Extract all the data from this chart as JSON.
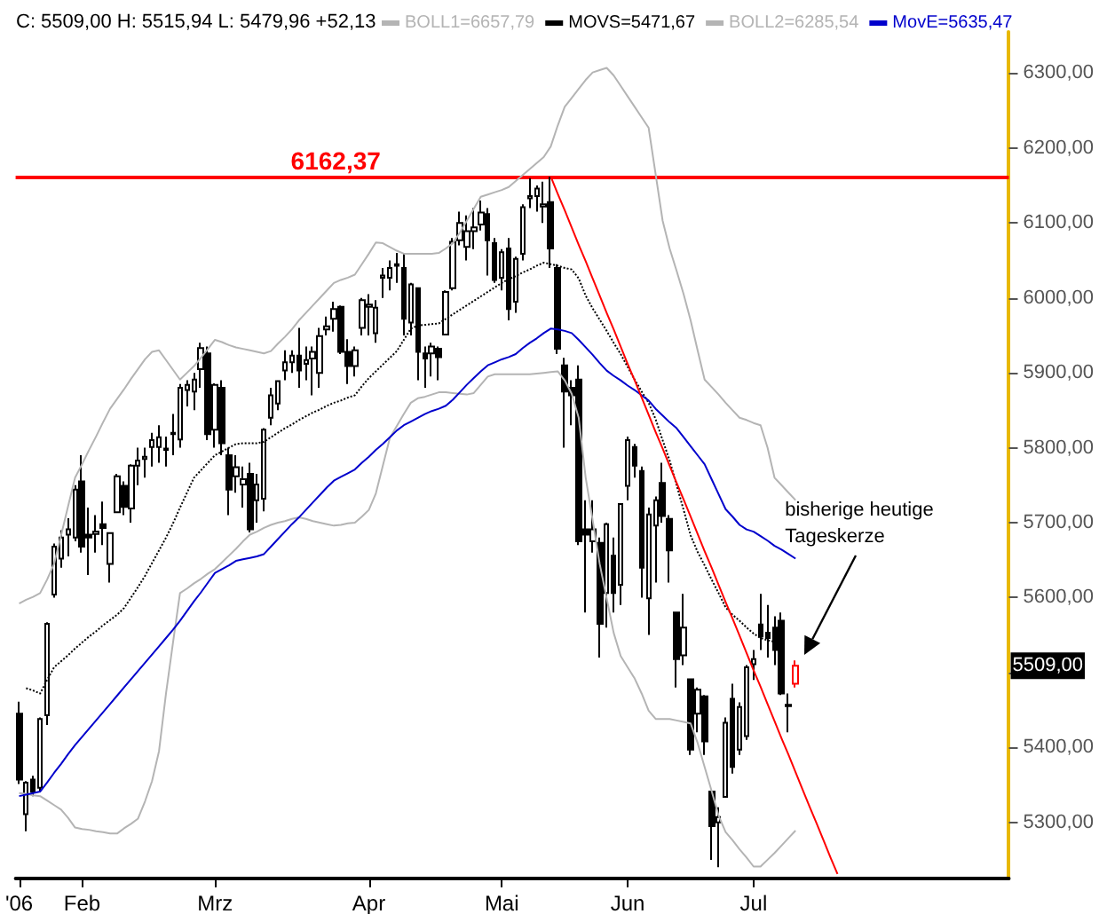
{
  "chart_data": {
    "type": "candlestick",
    "title": "C: 5509,00 H: 5515,94 L: 5479,96 +52,13",
    "legend": "top",
    "marker": "none",
    "categories": [
      "'06",
      null,
      null,
      null,
      null,
      null,
      null,
      null,
      null,
      "Feb",
      null,
      null,
      null,
      null,
      null,
      null,
      null,
      null,
      null,
      null,
      null,
      null,
      null,
      null,
      null,
      null,
      null,
      null,
      "Mrz",
      null,
      null,
      null,
      null,
      null,
      null,
      null,
      null,
      null,
      null,
      null,
      null,
      null,
      null,
      null,
      null,
      null,
      null,
      null,
      null,
      null,
      "Apr",
      null,
      null,
      null,
      null,
      null,
      null,
      null,
      null,
      null,
      null,
      null,
      null,
      null,
      null,
      null,
      null,
      null,
      null,
      "Mai",
      null,
      null,
      null,
      null,
      null,
      null,
      null,
      null,
      null,
      null,
      null,
      null,
      null,
      null,
      null,
      null,
      null,
      "Jun",
      null,
      null,
      null,
      null,
      null,
      null,
      null,
      null,
      null,
      null,
      null,
      null,
      null,
      null,
      null,
      null,
      null,
      "Jul",
      null,
      null,
      null,
      null,
      null,
      null,
      null,
      null,
      null,
      null,
      null,
      null,
      null,
      null,
      null,
      null,
      null,
      null,
      null,
      null,
      null,
      null,
      null,
      null,
      null,
      null,
      null,
      null,
      null,
      null,
      null,
      null,
      null,
      null,
      null,
      null
    ],
    "ylim": [
      5225,
      6355
    ],
    "yticks": [
      {
        "value": 5300,
        "label": "5300,00"
      },
      {
        "value": 5400,
        "label": "5400,00"
      },
      {
        "value": 5500,
        "label": null
      },
      {
        "value": 5600,
        "label": "5600,00"
      },
      {
        "value": 5700,
        "label": "5700,00"
      },
      {
        "value": 5800,
        "label": "5800,00"
      },
      {
        "value": 5900,
        "label": "5900,00"
      },
      {
        "value": 6000,
        "label": "6000,00"
      },
      {
        "value": 6100,
        "label": "6100,00"
      },
      {
        "value": 6200,
        "label": "6200,00"
      },
      {
        "value": 6300,
        "label": "6300,00"
      }
    ],
    "ohlc": [
      [
        5445,
        5461,
        5351,
        5357
      ],
      [
        5311,
        5355,
        5288,
        5353
      ],
      [
        5357,
        5362,
        5335,
        5341
      ],
      [
        5346,
        5440,
        5340,
        5438
      ],
      [
        5443,
        5567,
        5430,
        5565
      ],
      [
        5604,
        5672,
        5600,
        5668
      ],
      [
        5652,
        5690,
        5640,
        5680
      ],
      [
        5684,
        5706,
        5655,
        5691
      ],
      [
        5680,
        5750,
        5675,
        5744
      ],
      [
        5755,
        5790,
        5660,
        5668
      ],
      [
        5684,
        5720,
        5630,
        5680
      ],
      [
        5685,
        5710,
        5660,
        5688
      ],
      [
        5698,
        5728,
        5670,
        5693
      ],
      [
        5645,
        5686,
        5620,
        5686
      ],
      [
        5714,
        5765,
        5714,
        5762
      ],
      [
        5749,
        5755,
        5710,
        5721
      ],
      [
        5719,
        5778,
        5700,
        5776
      ],
      [
        5776,
        5800,
        5750,
        5783
      ],
      [
        5785,
        5800,
        5760,
        5788
      ],
      [
        5801,
        5820,
        5775,
        5810
      ],
      [
        5801,
        5830,
        5780,
        5814
      ],
      [
        5797,
        5815,
        5775,
        5799
      ],
      [
        5818,
        5845,
        5790,
        5820
      ],
      [
        5811,
        5885,
        5800,
        5880
      ],
      [
        5877,
        5890,
        5855,
        5884
      ],
      [
        5875,
        5900,
        5850,
        5891
      ],
      [
        5905,
        5940,
        5880,
        5933
      ],
      [
        5926,
        5935,
        5810,
        5818
      ],
      [
        5824,
        5886,
        5800,
        5884
      ],
      [
        5880,
        5890,
        5790,
        5806
      ],
      [
        5790,
        5800,
        5710,
        5744
      ],
      [
        5762,
        5790,
        5740,
        5774
      ],
      [
        5751,
        5775,
        5720,
        5758
      ],
      [
        5765,
        5780,
        5687,
        5691
      ],
      [
        5730,
        5765,
        5700,
        5751
      ],
      [
        5732,
        5826,
        5715,
        5824
      ],
      [
        5840,
        5880,
        5830,
        5870
      ],
      [
        5859,
        5890,
        5850,
        5889
      ],
      [
        5903,
        5930,
        5890,
        5914
      ],
      [
        5914,
        5930,
        5900,
        5923
      ],
      [
        5923,
        5960,
        5880,
        5903
      ],
      [
        5912,
        5935,
        5890,
        5917
      ],
      [
        5919,
        5935,
        5870,
        5928
      ],
      [
        5900,
        5960,
        5880,
        5949
      ],
      [
        5958,
        5975,
        5950,
        5962
      ],
      [
        5972,
        5995,
        5955,
        5985
      ],
      [
        5988,
        5990,
        5925,
        5928
      ],
      [
        5928,
        5945,
        5885,
        5909
      ],
      [
        5909,
        5935,
        5895,
        5930
      ],
      [
        5960,
        6000,
        5950,
        5997
      ],
      [
        5988,
        6005,
        5950,
        5991
      ],
      [
        5953,
        5997,
        5940,
        5987
      ],
      [
        6027,
        6040,
        6000,
        6030
      ],
      [
        6027,
        6050,
        6010,
        6040
      ],
      [
        6043,
        6060,
        6020,
        6045
      ],
      [
        6040,
        6060,
        5950,
        5972
      ],
      [
        5967,
        6020,
        5950,
        6018
      ],
      [
        6013,
        6013,
        5890,
        5928
      ],
      [
        5926,
        5935,
        5880,
        5919
      ],
      [
        5926,
        5940,
        5895,
        5935
      ],
      [
        5932,
        5935,
        5890,
        5921
      ],
      [
        5951,
        6010,
        5950,
        6008
      ],
      [
        6013,
        6080,
        6010,
        6075
      ],
      [
        6077,
        6115,
        6070,
        6100
      ],
      [
        6068,
        6110,
        6050,
        6089
      ],
      [
        6089,
        6120,
        6065,
        6094
      ],
      [
        6098,
        6130,
        6090,
        6114
      ],
      [
        6112,
        6120,
        6030,
        6077
      ],
      [
        6073,
        6080,
        6020,
        6024
      ],
      [
        6027,
        6065,
        6010,
        6061
      ],
      [
        6066,
        6080,
        5970,
        5985
      ],
      [
        5995,
        6055,
        5980,
        6052
      ],
      [
        6059,
        6125,
        6050,
        6121
      ],
      [
        6133,
        6160,
        6120,
        6136
      ],
      [
        6136,
        6150,
        6115,
        6146
      ],
      [
        6122,
        6155,
        6100,
        6125
      ],
      [
        6128,
        6162,
        6040,
        6066
      ],
      [
        6040,
        6045,
        5925,
        5932
      ],
      [
        5910,
        5920,
        5800,
        5875
      ],
      [
        5880,
        5890,
        5830,
        5870
      ],
      [
        5891,
        5910,
        5670,
        5675
      ],
      [
        5691,
        5730,
        5580,
        5684
      ],
      [
        5675,
        5730,
        5660,
        5691
      ],
      [
        5673,
        5680,
        5520,
        5565
      ],
      [
        5606,
        5700,
        5560,
        5698
      ],
      [
        5656,
        5680,
        5580,
        5606
      ],
      [
        5617,
        5725,
        5590,
        5725
      ],
      [
        5749,
        5815,
        5730,
        5810
      ],
      [
        5801,
        5805,
        5760,
        5776
      ],
      [
        5769,
        5775,
        5600,
        5640
      ],
      [
        5599,
        5720,
        5550,
        5711
      ],
      [
        5696,
        5735,
        5620,
        5730
      ],
      [
        5753,
        5780,
        5700,
        5709
      ],
      [
        5705,
        5710,
        5620,
        5663
      ],
      [
        5580,
        5580,
        5480,
        5518
      ],
      [
        5523,
        5605,
        5510,
        5560
      ],
      [
        5491,
        5491,
        5390,
        5397
      ],
      [
        5445,
        5480,
        5420,
        5477
      ],
      [
        5468,
        5470,
        5390,
        5408
      ],
      [
        5341,
        5341,
        5250,
        5295
      ],
      [
        5300,
        5320,
        5240,
        5307
      ],
      [
        5334,
        5440,
        5334,
        5433
      ],
      [
        5465,
        5485,
        5365,
        5374
      ],
      [
        5397,
        5460,
        5390,
        5454
      ],
      [
        5415,
        5510,
        5410,
        5507
      ],
      [
        5511,
        5530,
        5490,
        5518
      ],
      [
        5564,
        5605,
        5530,
        5548
      ],
      [
        5553,
        5590,
        5520,
        5546
      ],
      [
        5560,
        5575,
        5510,
        5530
      ],
      [
        5569,
        5580,
        5470,
        5472
      ],
      [
        5455,
        5472,
        5420,
        5457
      ],
      [
        5485,
        5515.94,
        5479.96,
        5509
      ],
      null,
      null,
      null,
      null,
      null,
      null,
      null,
      null,
      null,
      null,
      null,
      null,
      null,
      null,
      null,
      null,
      null,
      null,
      null,
      null,
      null,
      null,
      null,
      null,
      null,
      null,
      null,
      null,
      null,
      null
    ],
    "colors": [
      "#000000",
      "#000000",
      "#000000",
      "#000000",
      "#000000",
      "#000000",
      "#000000",
      "#000000",
      "#000000",
      "#000000",
      "#000000",
      "#000000",
      "#000000",
      "#000000",
      "#000000",
      "#000000",
      "#000000",
      "#000000",
      "#000000",
      "#000000",
      "#000000",
      "#000000",
      "#000000",
      "#000000",
      "#000000",
      "#000000",
      "#000000",
      "#000000",
      "#000000",
      "#000000",
      "#000000",
      "#000000",
      "#000000",
      "#000000",
      "#000000",
      "#000000",
      "#000000",
      "#000000",
      "#000000",
      "#000000",
      "#000000",
      "#000000",
      "#000000",
      "#000000",
      "#000000",
      "#000000",
      "#000000",
      "#000000",
      "#000000",
      "#000000",
      "#000000",
      "#000000",
      "#000000",
      "#000000",
      "#000000",
      "#000000",
      "#000000",
      "#000000",
      "#000000",
      "#000000",
      "#000000",
      "#000000",
      "#000000",
      "#000000",
      "#000000",
      "#000000",
      "#000000",
      "#000000",
      "#000000",
      "#000000",
      "#000000",
      "#000000",
      "#000000",
      "#000000",
      "#000000",
      "#000000",
      "#000000",
      "#000000",
      "#000000",
      "#000000",
      "#000000",
      "#000000",
      "#000000",
      "#000000",
      "#000000",
      "#000000",
      "#000000",
      "#000000",
      "#000000",
      "#000000",
      "#000000",
      "#000000",
      "#000000",
      "#000000",
      "#000000",
      "#000000",
      "#000000",
      "#000000",
      "#000000",
      "#000000",
      "#000000",
      "#000000",
      "#000000",
      "#000000",
      "#000000",
      "#000000",
      "#000000",
      "#000000",
      "#000000",
      "#000000",
      "#000000",
      "#ff0000",
      null,
      null,
      null,
      null,
      null,
      null,
      null,
      null,
      null,
      null,
      null,
      null,
      null,
      null,
      null,
      null,
      null,
      null,
      null,
      null,
      null,
      null,
      null,
      null,
      null,
      null,
      null,
      null,
      null,
      null
    ],
    "series": [
      {
        "name": "BOLL1=6657,79",
        "type": "line",
        "color": "#b4b4b4",
        "line_style": "solid",
        "values": [
          5592,
          5597,
          5601,
          5606,
          5624,
          5645,
          5683,
          5722,
          5760,
          5778,
          5797,
          5815,
          5834,
          5852,
          5865,
          5878,
          5892,
          5905,
          5918,
          5928,
          5930,
          5917,
          5904,
          5891,
          5900,
          5909,
          5920,
          5932,
          5944,
          5941,
          5937,
          5934,
          5932,
          5930,
          5928,
          5926,
          5929,
          5939,
          5948,
          5958,
          5970,
          5980,
          5990,
          6000,
          6010,
          6020,
          6024,
          6027,
          6031,
          6045,
          6059,
          6074,
          6073,
          6068,
          6063,
          6059,
          6059,
          6059,
          6059,
          6059,
          6060,
          6066,
          6073,
          6087,
          6103,
          6119,
          6135,
          6138,
          6141,
          6144,
          6148,
          6156,
          6164,
          6172,
          6180,
          6188,
          6202,
          6230,
          6255,
          6267,
          6279,
          6291,
          6301,
          6304,
          6307,
          6297,
          6283,
          6269,
          6255,
          6241,
          6227,
          6165,
          6103,
          6066,
          6036,
          6005,
          5970,
          5930,
          5891,
          5881,
          5871,
          5860,
          5850,
          5840,
          5837,
          5833,
          5830,
          5800,
          5760,
          5750,
          5740,
          5730,
          null,
          null,
          null,
          null,
          null,
          null,
          null,
          null,
          null,
          null,
          null,
          null,
          null,
          null,
          null,
          null,
          null,
          null,
          null,
          null,
          null,
          null,
          null,
          null,
          null,
          null,
          null,
          null,
          null,
          null
        ]
      },
      {
        "name": "MOVS=5471,67",
        "type": "line",
        "color": "#000000",
        "line_style": "dotted",
        "values": [
          null,
          5479,
          5476,
          5472,
          5490,
          5507,
          5515,
          5523,
          5532,
          5540,
          5548,
          5555,
          5563,
          5570,
          5577,
          5586,
          5600,
          5614,
          5629,
          5646,
          5663,
          5680,
          5699,
          5720,
          5740,
          5760,
          5770,
          5780,
          5790,
          5795,
          5800,
          5805,
          5806,
          5806,
          5806,
          5808,
          5814,
          5820,
          5826,
          5831,
          5837,
          5842,
          5847,
          5851,
          5856,
          5860,
          5863,
          5867,
          5870,
          5882,
          5893,
          5902,
          5911,
          5920,
          5929,
          5944,
          5959,
          5963,
          5964,
          5965,
          5966,
          5972,
          5978,
          5984,
          5990,
          5996,
          6002,
          6008,
          6014,
          6020,
          6025,
          6029,
          6034,
          6038,
          6043,
          6047,
          6045,
          6043,
          6040,
          6038,
          6026,
          6003,
          5986,
          5971,
          5956,
          5940,
          5925,
          5908,
          5891,
          5875,
          5860,
          5838,
          5810,
          5783,
          5750,
          5717,
          5683,
          5661,
          5643,
          5624,
          5606,
          5587,
          5577,
          5569,
          5560,
          5552,
          5546,
          5543,
          5541,
          null,
          null,
          null,
          null,
          null,
          null,
          null,
          null,
          null,
          null,
          null,
          null,
          null,
          null,
          null,
          null,
          null,
          null,
          null,
          null,
          null,
          null,
          null,
          null,
          null,
          null,
          null,
          null,
          null,
          null,
          null,
          null,
          null
        ]
      },
      {
        "name": "BOLL2=6285,54",
        "type": "line",
        "color": "#b4b4b4",
        "line_style": "solid",
        "values": [
          5339,
          5338,
          5336,
          5335,
          5329,
          5323,
          5317,
          5306,
          5293,
          5291,
          5290,
          5288,
          5287,
          5285,
          5285,
          5292,
          5298,
          5305,
          5328,
          5355,
          5395,
          5472,
          5540,
          5606,
          5612,
          5619,
          5625,
          5632,
          5638,
          5647,
          5656,
          5665,
          5675,
          5684,
          5688,
          5693,
          5697,
          5700,
          5702,
          5705,
          5707,
          5705,
          5702,
          5700,
          5698,
          5696,
          5697,
          5699,
          5700,
          5708,
          5717,
          5739,
          5776,
          5813,
          5829,
          5845,
          5860,
          5866,
          5868,
          5871,
          5874,
          5874,
          5873,
          5872,
          5871,
          5873,
          5884,
          5895,
          5898,
          5898,
          5898,
          5898,
          5898,
          5898,
          5899,
          5900,
          5901,
          5902,
          5890,
          5872,
          5840,
          5760,
          5703,
          5645,
          5599,
          5553,
          5522,
          5507,
          5492,
          5472,
          5449,
          5438,
          5438,
          5438,
          5436,
          5434,
          5432,
          5406,
          5374,
          5342,
          5309,
          5287,
          5276,
          5264,
          5253,
          5241,
          5241,
          5250,
          5259,
          5269,
          5279,
          5289,
          null,
          null,
          null,
          null,
          null,
          null,
          null,
          null,
          null,
          null,
          null,
          null,
          null,
          null,
          null,
          null,
          null,
          null,
          null,
          null,
          null,
          null,
          null,
          null,
          null,
          null,
          null,
          null,
          null,
          null
        ]
      },
      {
        "name": "MovE=5635,47",
        "type": "line",
        "color": "#0000cc",
        "line_style": "solid",
        "values": [
          5335,
          5337,
          5339,
          5341,
          5353,
          5366,
          5378,
          5391,
          5403,
          5414,
          5425,
          5436,
          5447,
          5458,
          5469,
          5480,
          5491,
          5502,
          5513,
          5524,
          5535,
          5546,
          5557,
          5569,
          5582,
          5595,
          5607,
          5620,
          5633,
          5638,
          5643,
          5649,
          5651,
          5653,
          5655,
          5658,
          5668,
          5678,
          5688,
          5698,
          5707,
          5717,
          5727,
          5737,
          5747,
          5756,
          5761,
          5766,
          5771,
          5780,
          5788,
          5797,
          5805,
          5814,
          5823,
          5830,
          5835,
          5840,
          5845,
          5849,
          5852,
          5856,
          5864,
          5874,
          5884,
          5893,
          5902,
          5910,
          5914,
          5918,
          5921,
          5925,
          5933,
          5940,
          5946,
          5953,
          5959,
          5958,
          5956,
          5953,
          5944,
          5934,
          5924,
          5913,
          5903,
          5896,
          5890,
          5883,
          5877,
          5870,
          5863,
          5852,
          5843,
          5834,
          5826,
          5814,
          5802,
          5790,
          5778,
          5758,
          5738,
          5718,
          5708,
          5697,
          5691,
          5688,
          5682,
          5676,
          5669,
          5664,
          5658,
          5652,
          null,
          null,
          null,
          null,
          null,
          null,
          null,
          null,
          null,
          null,
          null,
          null,
          null,
          null,
          null,
          null,
          null,
          null,
          null,
          null,
          null,
          null,
          null,
          null,
          null,
          null,
          null,
          null,
          null,
          null
        ]
      },
      {
        "type": "line",
        "color": "#ff0000",
        "line_style": "solid",
        "values": [
          null,
          null,
          null,
          null,
          null,
          null,
          null,
          null,
          null,
          null,
          null,
          null,
          null,
          null,
          null,
          null,
          null,
          null,
          null,
          null,
          null,
          null,
          null,
          null,
          null,
          null,
          null,
          null,
          null,
          null,
          null,
          null,
          null,
          null,
          null,
          null,
          null,
          null,
          null,
          null,
          null,
          null,
          null,
          null,
          null,
          null,
          null,
          null,
          null,
          null,
          null,
          null,
          null,
          null,
          null,
          null,
          null,
          null,
          null,
          null,
          null,
          null,
          null,
          null,
          null,
          null,
          null,
          null,
          null,
          null,
          null,
          null,
          null,
          null,
          null,
          null,
          6162,
          6139,
          6117,
          6094,
          6071,
          6049,
          6026,
          6003,
          5980,
          5958,
          5935,
          5912,
          5890,
          5867,
          5844,
          5821,
          5799,
          5776,
          5753,
          5731,
          5708,
          5685,
          5662,
          5640,
          5617,
          5594,
          5572,
          5549,
          5526,
          5503,
          5481,
          5458,
          5435,
          5412,
          5390,
          5367,
          5344,
          5321,
          5299,
          5276,
          5253,
          5231,
          null,
          null,
          null,
          null,
          null,
          null,
          null,
          null,
          null,
          null,
          null,
          null,
          null,
          null,
          null,
          null,
          null,
          null,
          null,
          null,
          null,
          null,
          null,
          null
        ]
      }
    ],
    "ref_lines": [
      {
        "axis": "y",
        "value": 6162.37,
        "label": "6162,37",
        "color": "#ff0000"
      }
    ],
    "annotations": [
      "bisherige heutige Tageskerze",
      "5509,00"
    ]
  }
}
